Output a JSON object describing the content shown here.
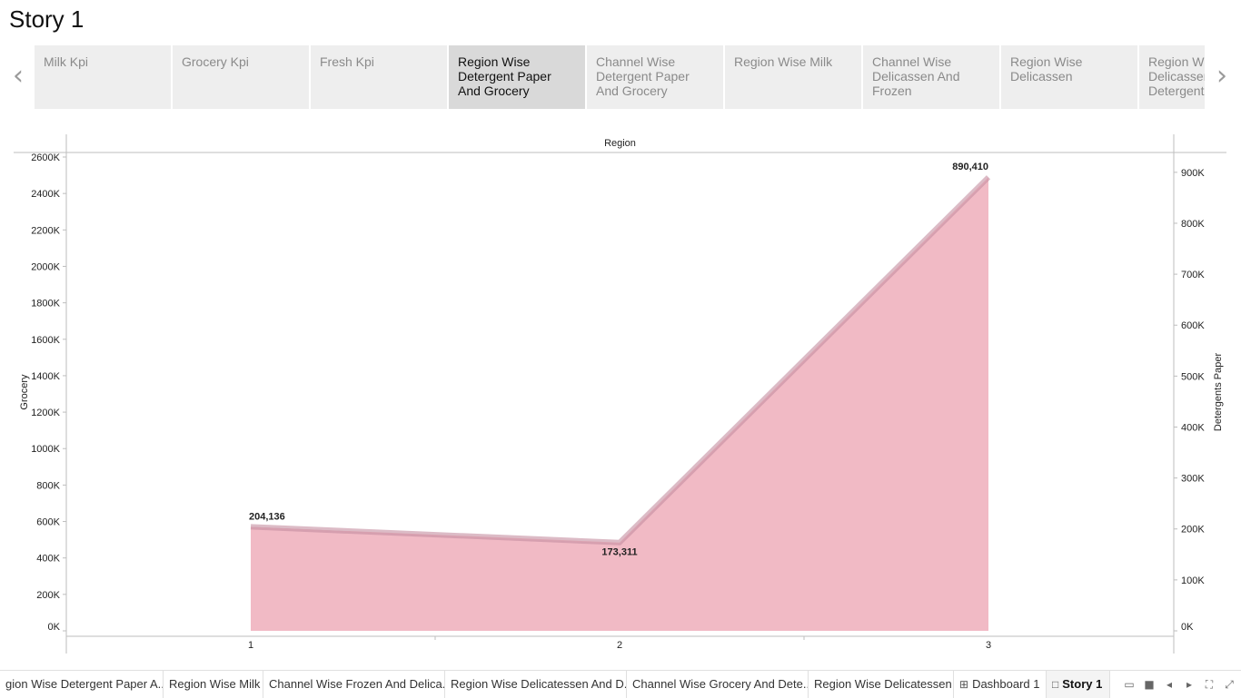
{
  "story": {
    "title": "Story 1"
  },
  "storypoints": [
    {
      "label": "Milk Kpi",
      "active": false
    },
    {
      "label": "Grocery Kpi",
      "active": false
    },
    {
      "label": "Fresh Kpi",
      "active": false
    },
    {
      "label": "Region Wise Detergent Paper And Grocery",
      "active": true
    },
    {
      "label": "Channel Wise Detergent Paper And Grocery",
      "active": false
    },
    {
      "label": "Region Wise Milk",
      "active": false
    },
    {
      "label": "Channel Wise Delicassen And Frozen",
      "active": false
    },
    {
      "label": "Region Wise Delicassen",
      "active": false
    },
    {
      "label": "Region Wise Delicassen Detergent P",
      "active": false
    }
  ],
  "nav": {
    "prev_icon": "chevron-left-icon",
    "next_icon": "chevron-right-icon"
  },
  "chart_data": {
    "type": "area",
    "title": "Region",
    "categories": [
      "1",
      "2",
      "3"
    ],
    "x": [
      1,
      2,
      3
    ],
    "ylabel": "Grocery",
    "y2label": "Detergents Paper",
    "ylim": [
      0,
      2600000
    ],
    "y2lim": [
      0,
      930000
    ],
    "yticks": [
      "0K",
      "200K",
      "400K",
      "600K",
      "800K",
      "1000K",
      "1200K",
      "1400K",
      "1600K",
      "1800K",
      "2000K",
      "2200K",
      "2400K",
      "2600K"
    ],
    "y2ticks": [
      "0K",
      "100K",
      "200K",
      "300K",
      "400K",
      "500K",
      "600K",
      "700K",
      "800K",
      "900K"
    ],
    "series": [
      {
        "name": "Grocery",
        "axis": "left",
        "values": [
          570000,
          480000,
          2480000
        ],
        "color": "#4e79a7"
      },
      {
        "name": "Detergents Paper",
        "axis": "right",
        "values": [
          204136,
          173311,
          890410
        ],
        "color": "#ffc0c8"
      }
    ],
    "data_labels": [
      "204,136",
      "173,311",
      "890,410"
    ],
    "grid": false
  },
  "tabs": [
    {
      "label": "gion Wise Detergent Paper A...",
      "active": false,
      "icon": ""
    },
    {
      "label": "Region Wise Milk",
      "active": false,
      "icon": ""
    },
    {
      "label": "Channel Wise Frozen And Delica...",
      "active": false,
      "icon": ""
    },
    {
      "label": "Region Wise Delicatessen And D...",
      "active": false,
      "icon": ""
    },
    {
      "label": "Channel Wise Grocery And Dete...",
      "active": false,
      "icon": ""
    },
    {
      "label": "Region Wise Delicatessen",
      "active": false,
      "icon": ""
    },
    {
      "label": "Dashboard 1",
      "active": false,
      "icon": "dashboard-icon"
    },
    {
      "label": "Story 1",
      "active": true,
      "icon": "story-book-icon"
    }
  ],
  "toolbar_icons": [
    "sheet-sorter-icon",
    "filmstrip-icon",
    "prev-sheet-icon",
    "next-sheet-icon",
    "fit-screen-icon",
    "presentation-mode-icon"
  ]
}
